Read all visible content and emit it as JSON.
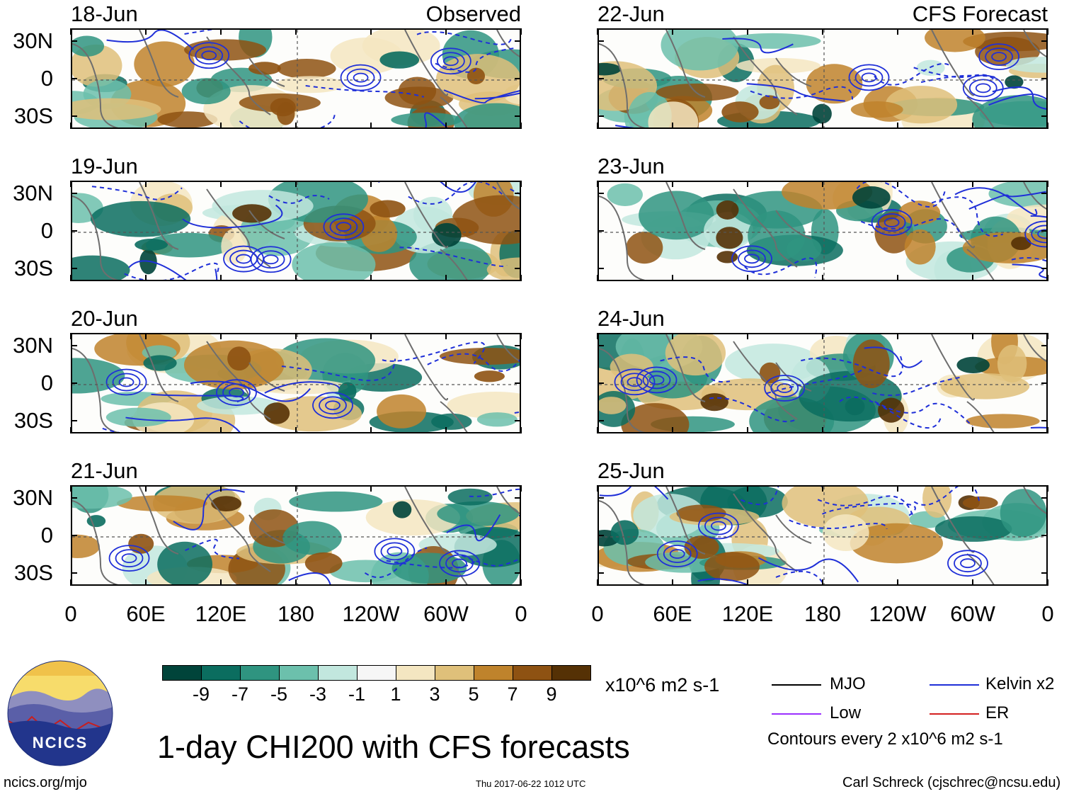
{
  "panels": [
    {
      "date": "18-Jun",
      "tag": "Observed",
      "column": "left"
    },
    {
      "date": "19-Jun",
      "tag": "",
      "column": "left"
    },
    {
      "date": "20-Jun",
      "tag": "",
      "column": "left"
    },
    {
      "date": "21-Jun",
      "tag": "",
      "column": "left"
    },
    {
      "date": "22-Jun",
      "tag": "CFS Forecast",
      "column": "right"
    },
    {
      "date": "23-Jun",
      "tag": "",
      "column": "right"
    },
    {
      "date": "24-Jun",
      "tag": "",
      "column": "right"
    },
    {
      "date": "25-Jun",
      "tag": "",
      "column": "right"
    }
  ],
  "y_axis_labels": [
    "30N",
    "0",
    "30S"
  ],
  "x_axis_labels": [
    "0",
    "60E",
    "120E",
    "180",
    "120W",
    "60W",
    "0"
  ],
  "colorbar": {
    "colors": [
      "#00443a",
      "#0b6d5f",
      "#2f9480",
      "#6cc0ac",
      "#c2e7de",
      "#f6f6f6",
      "#f4e6c1",
      "#dfc07a",
      "#bf832c",
      "#8e5212",
      "#553105"
    ],
    "labels": [
      "-9",
      "-7",
      "-5",
      "-3",
      "-1",
      "1",
      "3",
      "5",
      "7",
      "9"
    ],
    "units": "x10^6 m2 s-1"
  },
  "legend": {
    "items": [
      {
        "label": "MJO",
        "color": "#000000"
      },
      {
        "label": "Kelvin x2",
        "color": "#1f2fd8"
      },
      {
        "label": "Low",
        "color": "#9b30ff"
      },
      {
        "label": "ER",
        "color": "#d42020"
      }
    ],
    "note": "Contours every 2 x10^6 m2 s-1"
  },
  "title": "1-day CHI200 with CFS forecasts",
  "logo_text": "NCICS",
  "footer": {
    "left": "ncics.org/mjo",
    "center": "Thu 2017-06-22 1012 UTC",
    "right": "Carl Schreck (cjschrec@ncsu.edu)"
  }
}
